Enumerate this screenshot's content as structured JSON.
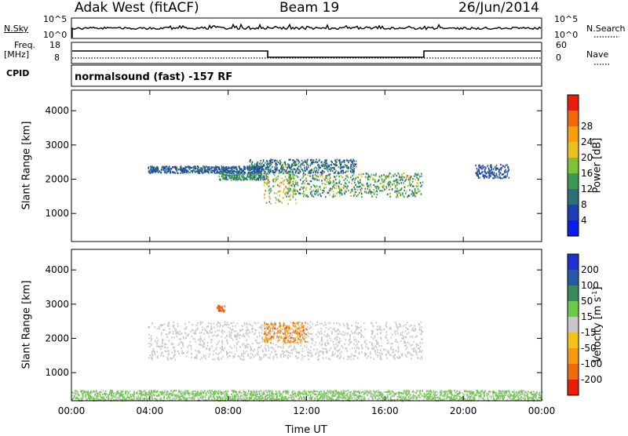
{
  "header": {
    "station": "Adak West (fitACF)",
    "beam": "Beam 19",
    "date": "26/Jun/2014"
  },
  "noise_panel": {
    "left_label": "N.Sky",
    "right_label": "N.Search",
    "tick_top": "10^5",
    "tick_bottom": "10^0"
  },
  "freq_panel": {
    "left_label_1": "Freq.",
    "left_label_2": "[MHz]",
    "left_ticks": [
      "18",
      "8"
    ],
    "right_ticks": [
      "60",
      "0"
    ],
    "right_label": "Nave",
    "cpid_label": "CPID",
    "cpid_text": "normalsound (fast) -157 RF"
  },
  "colors": {
    "power_scale": [
      "#0b1cf0",
      "#1f3fb0",
      "#2f6f7a",
      "#3a9a55",
      "#7fc23a",
      "#e8c21e",
      "#f5a00c",
      "#f06a0a",
      "#e81e0a"
    ],
    "velocity_scale": [
      "#1f2fd0",
      "#2a58a8",
      "#3a8a5a",
      "#6ec84a",
      "#c8c8c8",
      "#f5c21a",
      "#f59a10",
      "#f06a10",
      "#e81e0a"
    ]
  },
  "chart_data": [
    {
      "type": "heatmap",
      "title": "",
      "xlabel": "Time UT",
      "ylabel": "Slant Range [km]",
      "x_ticks": [
        "00:00",
        "04:00",
        "08:00",
        "12:00",
        "16:00",
        "20:00",
        "00:00"
      ],
      "y_ticks": [
        1000,
        2000,
        3000,
        4000
      ],
      "xlim": [
        0,
        24
      ],
      "ylim": [
        180,
        4600
      ],
      "colorbar": {
        "label": "Power [dB]",
        "ticks": [
          "4",
          "8",
          "12",
          "16",
          "20",
          "24",
          "28"
        ],
        "range": [
          0,
          30
        ]
      },
      "echo_bands": [
        {
          "start_h": 3.9,
          "end_h": 9.8,
          "range_km": [
            2200,
            2400
          ],
          "power_db": [
            4,
            10
          ]
        },
        {
          "start_h": 7.5,
          "end_h": 10.0,
          "range_km": [
            2000,
            2200
          ],
          "power_db": [
            6,
            14
          ]
        },
        {
          "start_h": 9.8,
          "end_h": 11.5,
          "range_km": [
            1300,
            2500
          ],
          "power_db": [
            8,
            24
          ]
        },
        {
          "start_h": 11.0,
          "end_h": 17.9,
          "range_km": [
            1500,
            2200
          ],
          "power_db": [
            6,
            18
          ]
        },
        {
          "start_h": 9.0,
          "end_h": 14.5,
          "range_km": [
            2200,
            2600
          ],
          "power_db": [
            4,
            12
          ]
        },
        {
          "start_h": 20.6,
          "end_h": 22.3,
          "range_km": [
            2050,
            2450
          ],
          "power_db": [
            4,
            8
          ]
        }
      ]
    },
    {
      "type": "heatmap",
      "title": "",
      "xlabel": "Time UT",
      "ylabel": "Slant Range [km]",
      "x_ticks": [
        "00:00",
        "04:00",
        "08:00",
        "12:00",
        "16:00",
        "20:00",
        "00:00"
      ],
      "y_ticks": [
        1000,
        2000,
        3000,
        4000
      ],
      "xlim": [
        0,
        24
      ],
      "ylim": [
        180,
        4600
      ],
      "colorbar": {
        "label": "Velocity [m s-1]",
        "label_text": "Velocity [m s",
        "label_sup": "-1",
        "label_end": "]",
        "ticks": [
          "200",
          "100",
          "50",
          "15",
          "-15",
          "-50",
          "-100",
          "-200"
        ],
        "range": [
          -250,
          250
        ]
      },
      "echo_bands": [
        {
          "start_h": 3.9,
          "end_h": 17.9,
          "range_km": [
            1400,
            2500
          ],
          "velocity_ms": [
            -15,
            15
          ]
        },
        {
          "start_h": 9.8,
          "end_h": 12.0,
          "range_km": [
            1900,
            2500
          ],
          "velocity_ms": [
            -200,
            -60
          ]
        },
        {
          "start_h": 7.4,
          "end_h": 7.8,
          "range_km": [
            2800,
            3000
          ],
          "velocity_ms": [
            -200,
            -150
          ]
        },
        {
          "start_h": 0.0,
          "end_h": 24.0,
          "range_km": [
            200,
            500
          ],
          "velocity_ms": [
            15,
            60
          ]
        }
      ]
    }
  ]
}
